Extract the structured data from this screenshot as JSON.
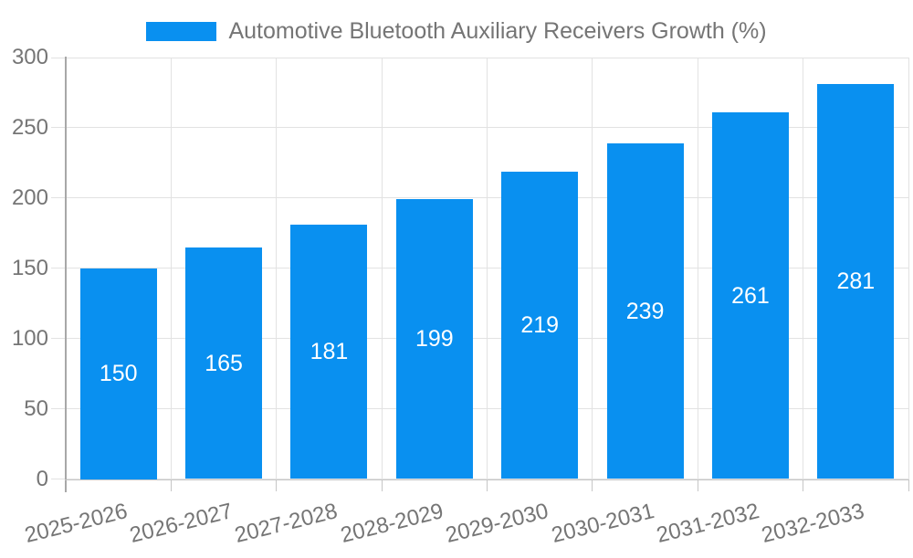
{
  "legend": {
    "label": "Automotive Bluetooth Auxiliary Receivers Growth (%)"
  },
  "chart_data": {
    "type": "bar",
    "title": "Automotive Bluetooth Auxiliary Receivers Growth (%)",
    "categories": [
      "2025-2026",
      "2026-2027",
      "2027-2028",
      "2028-2029",
      "2029-2030",
      "2030-2031",
      "2031-2032",
      "2032-2033"
    ],
    "values": [
      150,
      165,
      181,
      199,
      219,
      239,
      261,
      281
    ],
    "xlabel": "",
    "ylabel": "",
    "ylim": [
      0,
      300
    ],
    "ytick_step": 50,
    "yticks": [
      0,
      50,
      100,
      150,
      200,
      250,
      300
    ],
    "grid": true,
    "legend_position": "top",
    "value_labels": "inside-center",
    "colors": {
      "bar": "#0990F0",
      "value_label": "#FFFFFF",
      "axis_text": "#757575",
      "grid_line": "#E2E2E2",
      "tick_line": "#C6C6C6",
      "axis_line": "#A8A8A8",
      "background": "#FFFFFF"
    }
  }
}
